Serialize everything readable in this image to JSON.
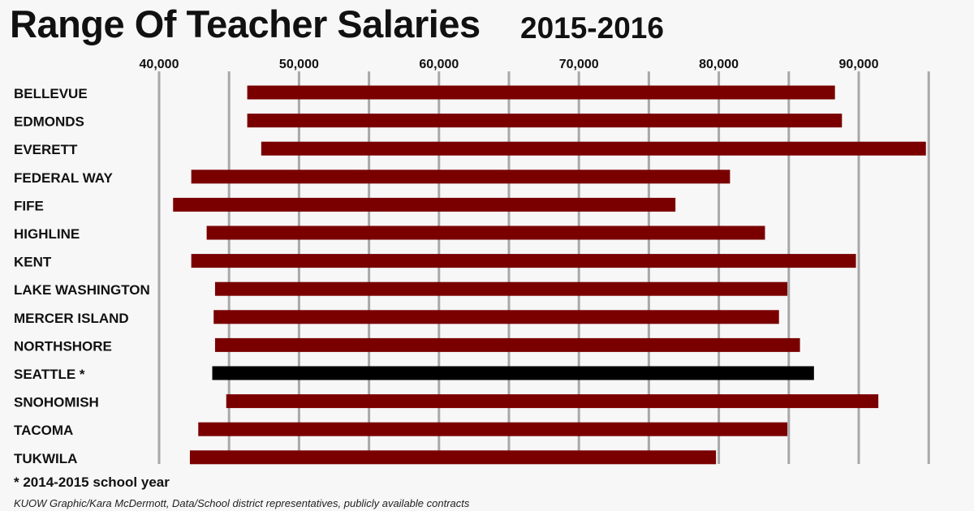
{
  "chart_data": {
    "type": "bar",
    "title": "Range Of Teacher Salaries",
    "subtitle": "2015-2016",
    "orientation": "horizontal-range",
    "xlim": [
      35000,
      93000
    ],
    "ticks": [
      40000,
      45000,
      50000,
      55000,
      60000,
      65000,
      70000,
      75000,
      80000,
      85000,
      90000,
      95000
    ],
    "tick_labels": [
      "40,000",
      "50,000",
      "60,000",
      "70,000",
      "80,000",
      "90,000"
    ],
    "labeled_ticks": [
      40000,
      50000,
      60000,
      70000,
      80000,
      90000
    ],
    "grid": true,
    "categories": [
      "BELLEVUE",
      "EDMONDS",
      "EVERETT",
      "FEDERAL WAY",
      "FIFE",
      "HIGHLINE",
      "KENT",
      "LAKE WASHINGTON",
      "MERCER ISLAND",
      "NORTHSHORE",
      "SEATTLE *",
      "SNOHOMISH",
      "TACOMA",
      "TUKWILA"
    ],
    "ranges": [
      [
        46300,
        88300
      ],
      [
        46300,
        88800
      ],
      [
        47300,
        94800
      ],
      [
        42300,
        80800
      ],
      [
        41000,
        76900
      ],
      [
        43400,
        83300
      ],
      [
        42300,
        89800
      ],
      [
        44000,
        84900
      ],
      [
        43900,
        84300
      ],
      [
        44000,
        85800
      ],
      [
        43800,
        86800
      ],
      [
        44800,
        91400
      ],
      [
        42800,
        84900
      ],
      [
        42200,
        79800
      ]
    ],
    "highlight_index": 10,
    "colors": {
      "bar": "#7a0000",
      "highlight": "#000000",
      "grid": "#a8a8a8"
    }
  },
  "footnote": "* 2014-2015 school year",
  "credit": "KUOW Graphic/Kara McDermott, Data/School district representatives, publicly available contracts"
}
